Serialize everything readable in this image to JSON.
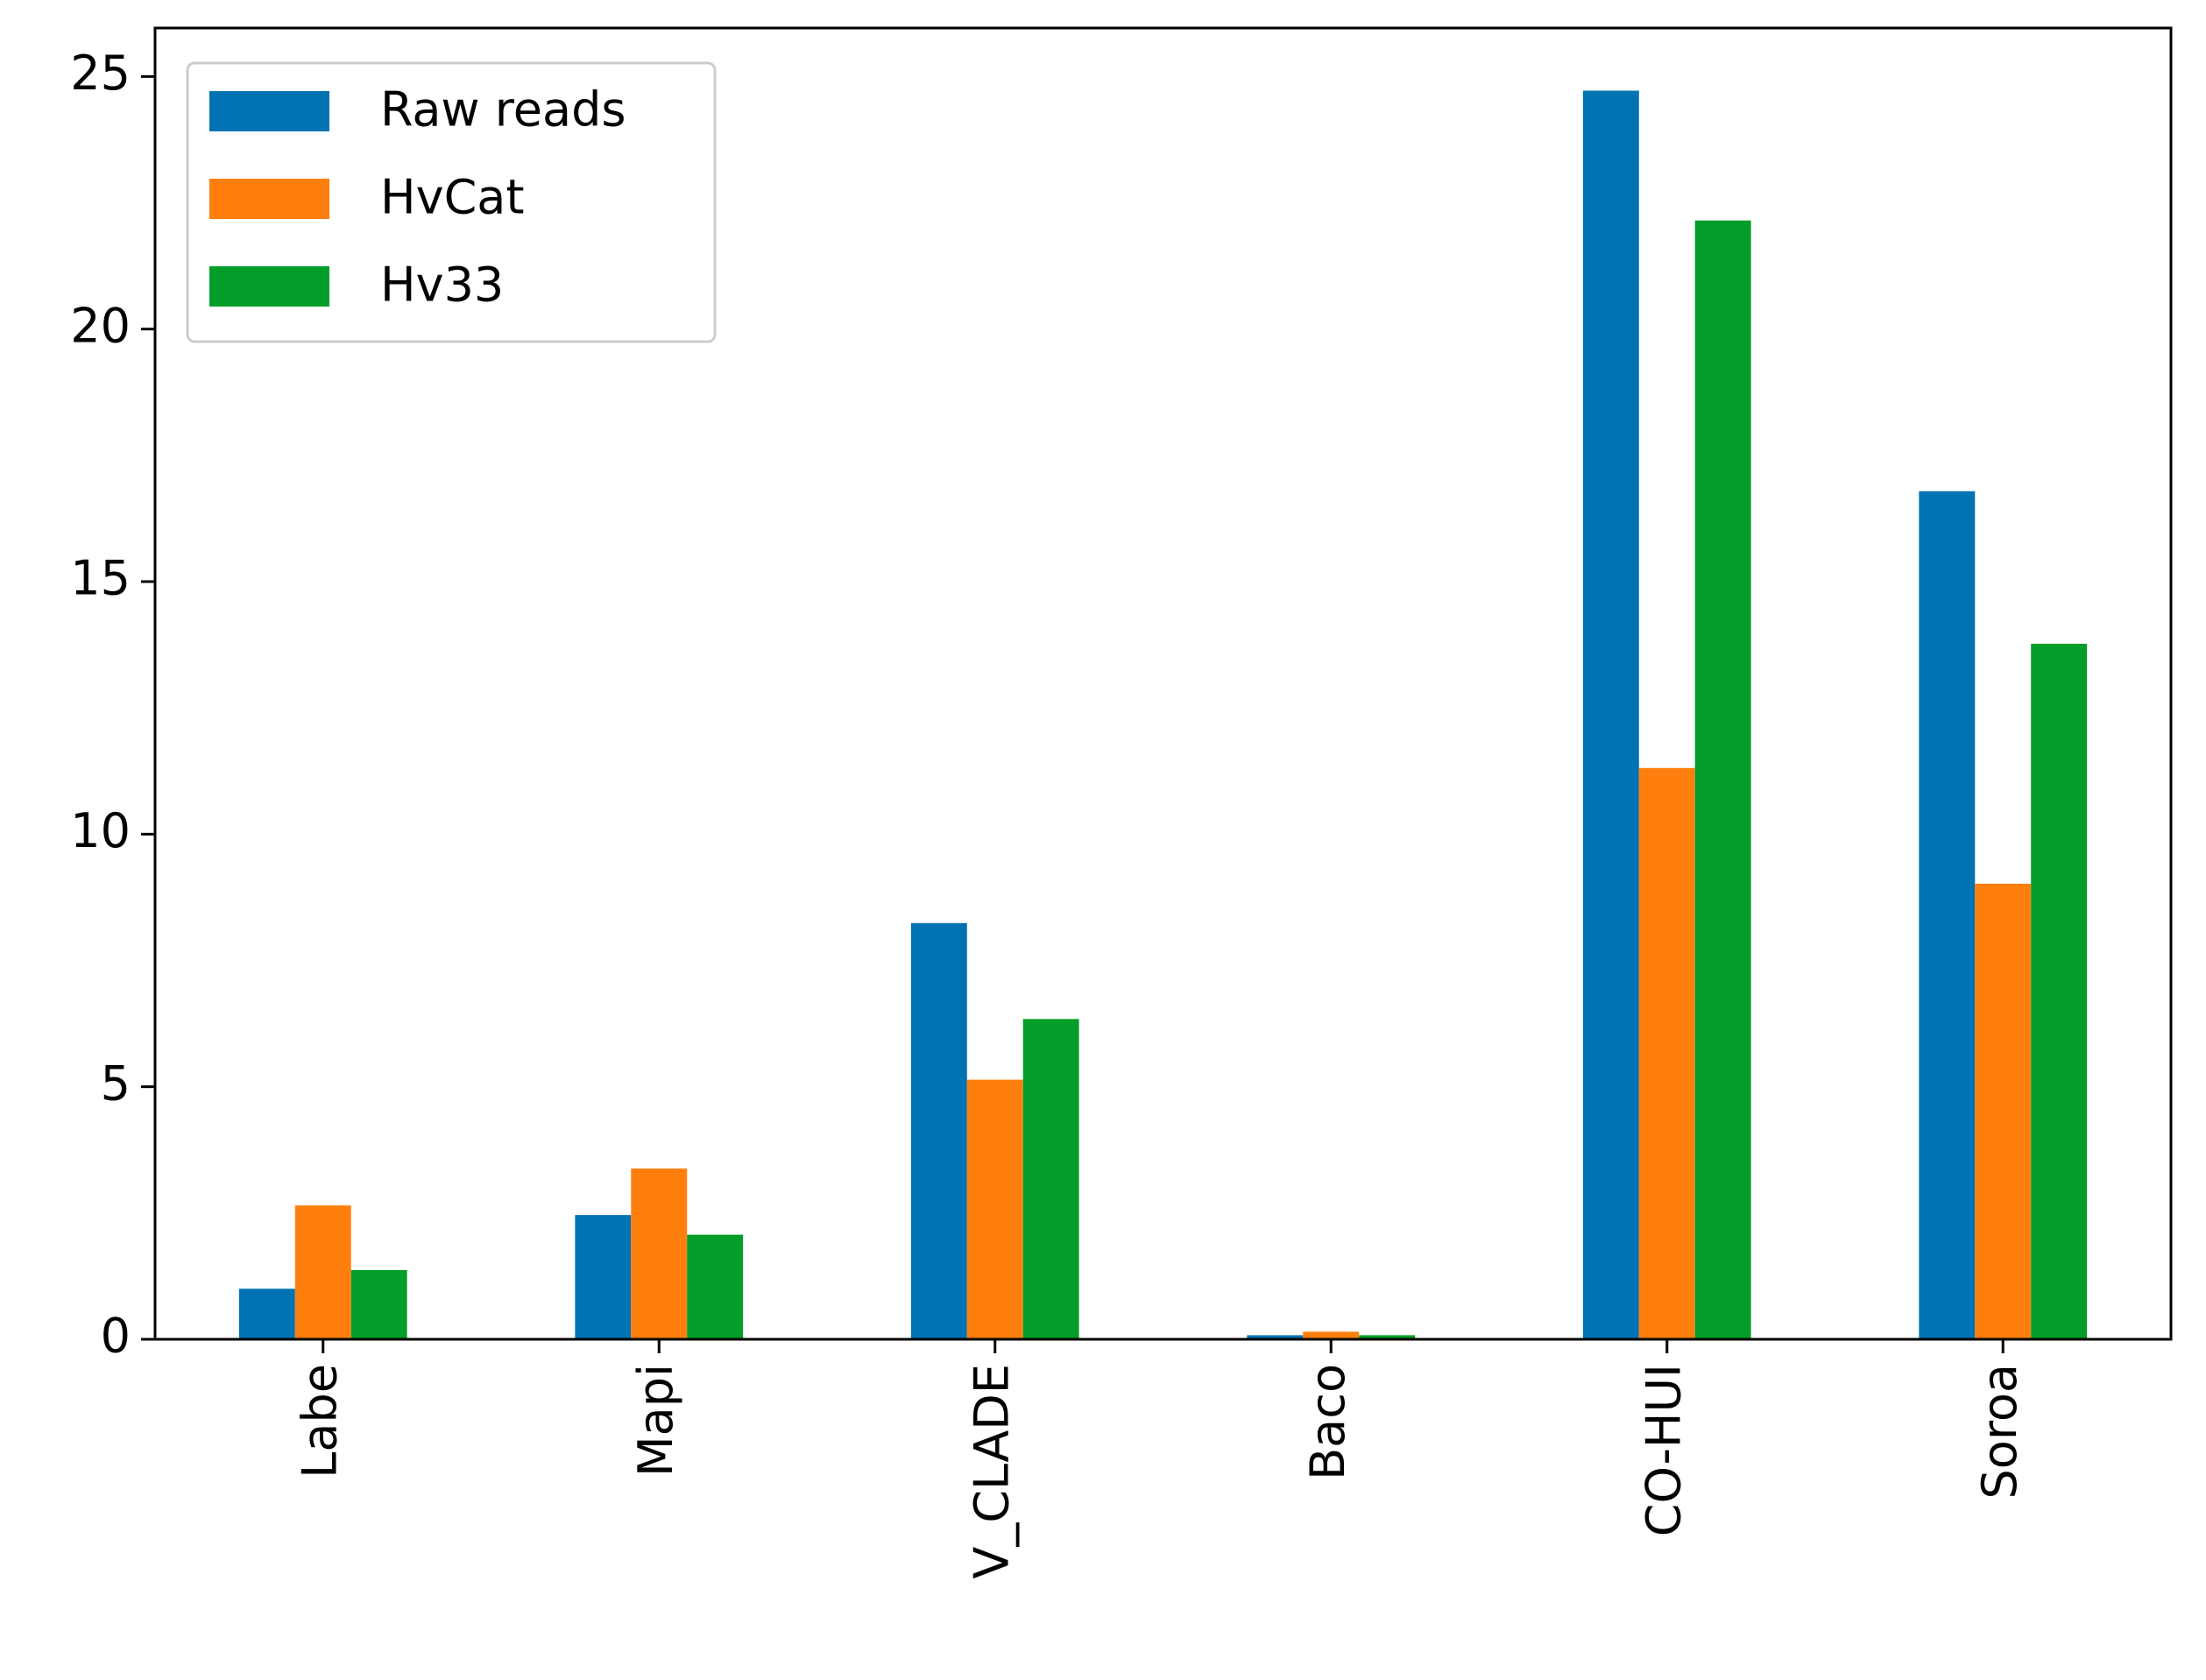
{
  "chart_data": {
    "type": "bar",
    "categories": [
      "Labe",
      "Mapi",
      "V_CLADE",
      "Baco",
      "CO-HUI",
      "Soroa"
    ],
    "series": [
      {
        "name": "Raw reads",
        "color": "#0173b2",
        "values": [
          1.0,
          2.46,
          8.24,
          0.08,
          24.72,
          16.79
        ]
      },
      {
        "name": "HvCat",
        "color": "#ff7f0e",
        "values": [
          2.65,
          3.38,
          5.14,
          0.15,
          11.31,
          9.02
        ]
      },
      {
        "name": "Hv33",
        "color": "#029e29",
        "values": [
          1.37,
          2.07,
          6.34,
          0.08,
          22.15,
          13.77
        ]
      }
    ],
    "ylim": [
      0,
      25.96
    ],
    "yticks": [
      0,
      5,
      10,
      15,
      20,
      25
    ],
    "grid": false,
    "legend": "upper left"
  }
}
